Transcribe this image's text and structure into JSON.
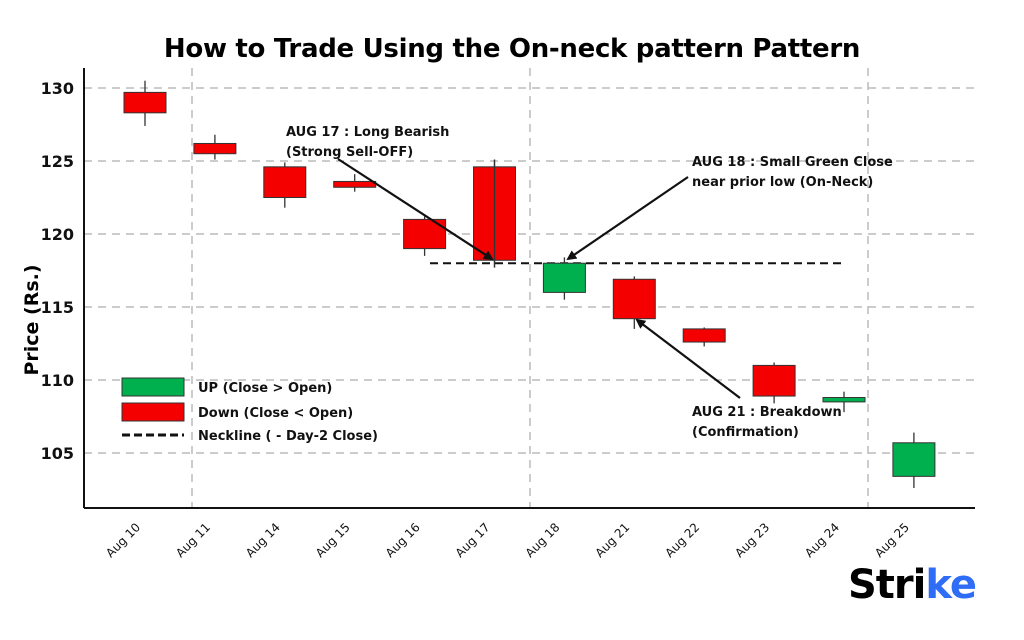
{
  "chart_data": {
    "type": "candlestick",
    "title": "How to Trade Using the On-neck pattern Pattern",
    "xlabel": "",
    "ylabel": "Price (Rs.)",
    "ylim": [
      101.5,
      131.5
    ],
    "yticks": [
      130,
      125,
      120,
      115,
      110,
      105
    ],
    "grid": true,
    "categories": [
      "Aug 10",
      "Aug 11",
      "Aug 14",
      "Aug 15",
      "Aug 16",
      "Aug 17",
      "Aug 18",
      "Aug 21",
      "Aug 22",
      "Aug 23",
      "Aug 24",
      "Aug 25"
    ],
    "series": [
      {
        "name": "open",
        "values": [
          129.7,
          126.2,
          124.6,
          123.6,
          121.0,
          124.6,
          116.0,
          116.9,
          113.5,
          111.0,
          108.5,
          103.4
        ]
      },
      {
        "name": "high",
        "values": [
          130.5,
          126.8,
          124.9,
          124.1,
          121.2,
          125.1,
          118.4,
          117.1,
          113.6,
          111.2,
          109.2,
          106.4
        ]
      },
      {
        "name": "low",
        "values": [
          127.4,
          125.1,
          121.8,
          122.9,
          118.5,
          117.7,
          115.5,
          113.5,
          112.3,
          108.4,
          107.8,
          102.6
        ]
      },
      {
        "name": "close",
        "values": [
          128.3,
          125.5,
          122.5,
          123.2,
          119.0,
          118.2,
          118.0,
          114.2,
          112.6,
          108.9,
          108.8,
          105.7
        ]
      }
    ],
    "neckline": 118.0,
    "legend": [
      {
        "label": "UP (Close > Open)",
        "color": "#00b04f",
        "kind": "box"
      },
      {
        "label": "Down (Close < Open)",
        "color": "#f50000",
        "kind": "box"
      },
      {
        "label": "Neckline ( - Day-2 Close)",
        "color": "#111111",
        "kind": "dashed-line"
      }
    ],
    "legend_position": "lower-left",
    "annotations": [
      {
        "line1": "AUG 17 : Long Bearish",
        "line2": "(Strong Sell-OFF)",
        "target": "Aug 17"
      },
      {
        "line1": "AUG 18 : Small Green Close",
        "line2": "near prior low (On-Neck)",
        "target": "Aug 18"
      },
      {
        "line1": "AUG 21 : Breakdown",
        "line2": "(Confirmation)",
        "target": "Aug 21"
      }
    ]
  },
  "colors": {
    "up": "#00b04f",
    "down": "#f50000",
    "grid": "#999999",
    "axis": "#111111"
  },
  "brand": {
    "prefix": "Stri",
    "suffix": "ke"
  }
}
